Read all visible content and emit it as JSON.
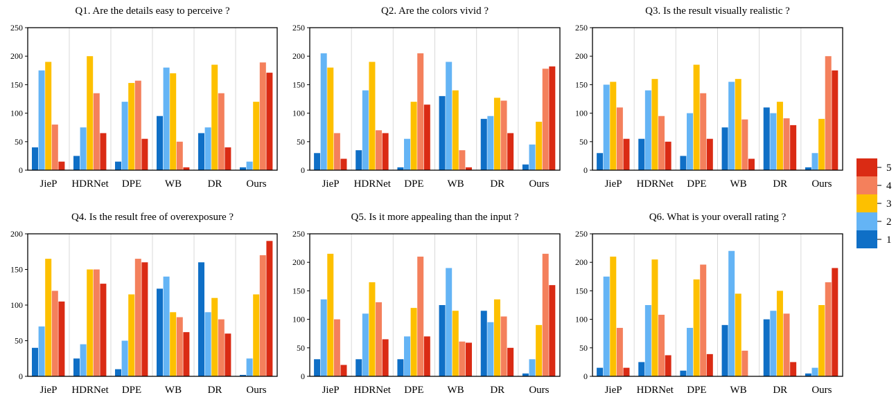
{
  "chart_data": [
    {
      "type": "bar",
      "title": "Q1. Are the details easy to perceive ?",
      "categories": [
        "JieP",
        "HDRNet",
        "DPE",
        "WB",
        "DR",
        "Ours"
      ],
      "ylim": [
        0,
        250
      ],
      "yticks": [
        0,
        50,
        100,
        150,
        200,
        250
      ],
      "grid": "vertical separators between categories",
      "series": [
        {
          "name": "1",
          "color": "#0F6FC6",
          "values": [
            40,
            25,
            15,
            95,
            65,
            5
          ]
        },
        {
          "name": "2",
          "color": "#64B4F5",
          "values": [
            175,
            75,
            120,
            180,
            75,
            15
          ]
        },
        {
          "name": "3",
          "color": "#FDC000",
          "values": [
            190,
            200,
            153,
            170,
            185,
            120
          ]
        },
        {
          "name": "4",
          "color": "#F4805C",
          "values": [
            80,
            135,
            157,
            50,
            135,
            189
          ]
        },
        {
          "name": "5",
          "color": "#DA2B14",
          "values": [
            15,
            65,
            55,
            5,
            40,
            171
          ]
        }
      ]
    },
    {
      "type": "bar",
      "title": "Q2. Are the colors vivid ?",
      "categories": [
        "JieP",
        "HDRNet",
        "DPE",
        "WB",
        "DR",
        "Ours"
      ],
      "ylim": [
        0,
        250
      ],
      "yticks": [
        0,
        50,
        100,
        150,
        200,
        250
      ],
      "grid": "vertical separators between categories",
      "series": [
        {
          "name": "1",
          "color": "#0F6FC6",
          "values": [
            30,
            35,
            5,
            130,
            90,
            10
          ]
        },
        {
          "name": "2",
          "color": "#64B4F5",
          "values": [
            205,
            140,
            55,
            190,
            95,
            45
          ]
        },
        {
          "name": "3",
          "color": "#FDC000",
          "values": [
            180,
            190,
            120,
            140,
            127,
            85
          ]
        },
        {
          "name": "4",
          "color": "#F4805C",
          "values": [
            65,
            70,
            205,
            35,
            122,
            178
          ]
        },
        {
          "name": "5",
          "color": "#DA2B14",
          "values": [
            20,
            65,
            115,
            5,
            65,
            182
          ]
        }
      ]
    },
    {
      "type": "bar",
      "title": "Q3. Is the result visually realistic ?",
      "categories": [
        "JieP",
        "HDRNet",
        "DPE",
        "WB",
        "DR",
        "Ours"
      ],
      "ylim": [
        0,
        250
      ],
      "yticks": [
        0,
        50,
        100,
        150,
        200,
        250
      ],
      "grid": "vertical separators between categories",
      "series": [
        {
          "name": "1",
          "color": "#0F6FC6",
          "values": [
            30,
            55,
            25,
            75,
            110,
            5
          ]
        },
        {
          "name": "2",
          "color": "#64B4F5",
          "values": [
            150,
            140,
            100,
            155,
            100,
            30
          ]
        },
        {
          "name": "3",
          "color": "#FDC000",
          "values": [
            155,
            160,
            185,
            160,
            120,
            90
          ]
        },
        {
          "name": "4",
          "color": "#F4805C",
          "values": [
            110,
            95,
            135,
            89,
            91,
            200
          ]
        },
        {
          "name": "5",
          "color": "#DA2B14",
          "values": [
            55,
            50,
            55,
            20,
            79,
            175
          ]
        }
      ]
    },
    {
      "type": "bar",
      "title": "Q4. Is the result free of overexposure ?",
      "categories": [
        "JieP",
        "HDRNet",
        "DPE",
        "WB",
        "DR",
        "Ours"
      ],
      "ylim": [
        0,
        200
      ],
      "yticks": [
        0,
        50,
        100,
        150,
        200
      ],
      "grid": "vertical separators between categories",
      "series": [
        {
          "name": "1",
          "color": "#0F6FC6",
          "values": [
            40,
            25,
            10,
            123,
            160,
            2
          ]
        },
        {
          "name": "2",
          "color": "#64B4F5",
          "values": [
            70,
            45,
            50,
            140,
            90,
            25
          ]
        },
        {
          "name": "3",
          "color": "#FDC000",
          "values": [
            165,
            150,
            115,
            90,
            110,
            115
          ]
        },
        {
          "name": "4",
          "color": "#F4805C",
          "values": [
            120,
            150,
            165,
            83,
            80,
            170
          ]
        },
        {
          "name": "5",
          "color": "#DA2B14",
          "values": [
            105,
            130,
            160,
            62,
            60,
            190
          ]
        }
      ]
    },
    {
      "type": "bar",
      "title": "Q5. Is it more appealing than the input ?",
      "categories": [
        "JieP",
        "HDRNet",
        "DPE",
        "WB",
        "DR",
        "Ours"
      ],
      "ylim": [
        0,
        250
      ],
      "yticks": [
        0,
        50,
        100,
        150,
        200,
        250
      ],
      "grid": "vertical separators between categories",
      "series": [
        {
          "name": "1",
          "color": "#0F6FC6",
          "values": [
            30,
            30,
            30,
            125,
            115,
            5
          ]
        },
        {
          "name": "2",
          "color": "#64B4F5",
          "values": [
            135,
            110,
            70,
            190,
            95,
            30
          ]
        },
        {
          "name": "3",
          "color": "#FDC000",
          "values": [
            215,
            165,
            120,
            115,
            135,
            90
          ]
        },
        {
          "name": "4",
          "color": "#F4805C",
          "values": [
            100,
            130,
            210,
            61,
            105,
            215
          ]
        },
        {
          "name": "5",
          "color": "#DA2B14",
          "values": [
            20,
            65,
            70,
            59,
            50,
            160
          ]
        }
      ]
    },
    {
      "type": "bar",
      "title": "Q6. What is your overall rating ?",
      "categories": [
        "JieP",
        "HDRNet",
        "DPE",
        "WB",
        "DR",
        "Ours"
      ],
      "ylim": [
        0,
        250
      ],
      "yticks": [
        0,
        50,
        100,
        150,
        200,
        250
      ],
      "grid": "vertical separators between categories",
      "series": [
        {
          "name": "1",
          "color": "#0F6FC6",
          "values": [
            15,
            25,
            10,
            90,
            100,
            5
          ]
        },
        {
          "name": "2",
          "color": "#64B4F5",
          "values": [
            175,
            125,
            85,
            220,
            115,
            15
          ]
        },
        {
          "name": "3",
          "color": "#FDC000",
          "values": [
            210,
            205,
            170,
            145,
            150,
            125
          ]
        },
        {
          "name": "4",
          "color": "#F4805C",
          "values": [
            85,
            108,
            196,
            45,
            110,
            165
          ]
        },
        {
          "name": "5",
          "color": "#DA2B14",
          "values": [
            15,
            37,
            39,
            0,
            25,
            190
          ]
        }
      ]
    }
  ],
  "legend": {
    "placement": "right",
    "order": [
      "5",
      "4",
      "3",
      "2",
      "1"
    ],
    "items": [
      {
        "label": "5",
        "color": "#DA2B14"
      },
      {
        "label": "4",
        "color": "#F4805C"
      },
      {
        "label": "3",
        "color": "#FDC000"
      },
      {
        "label": "2",
        "color": "#64B4F5"
      },
      {
        "label": "1",
        "color": "#0F6FC6"
      }
    ]
  },
  "style": {
    "axis_color": "#000000",
    "separator_color": "#D9D9D9"
  }
}
